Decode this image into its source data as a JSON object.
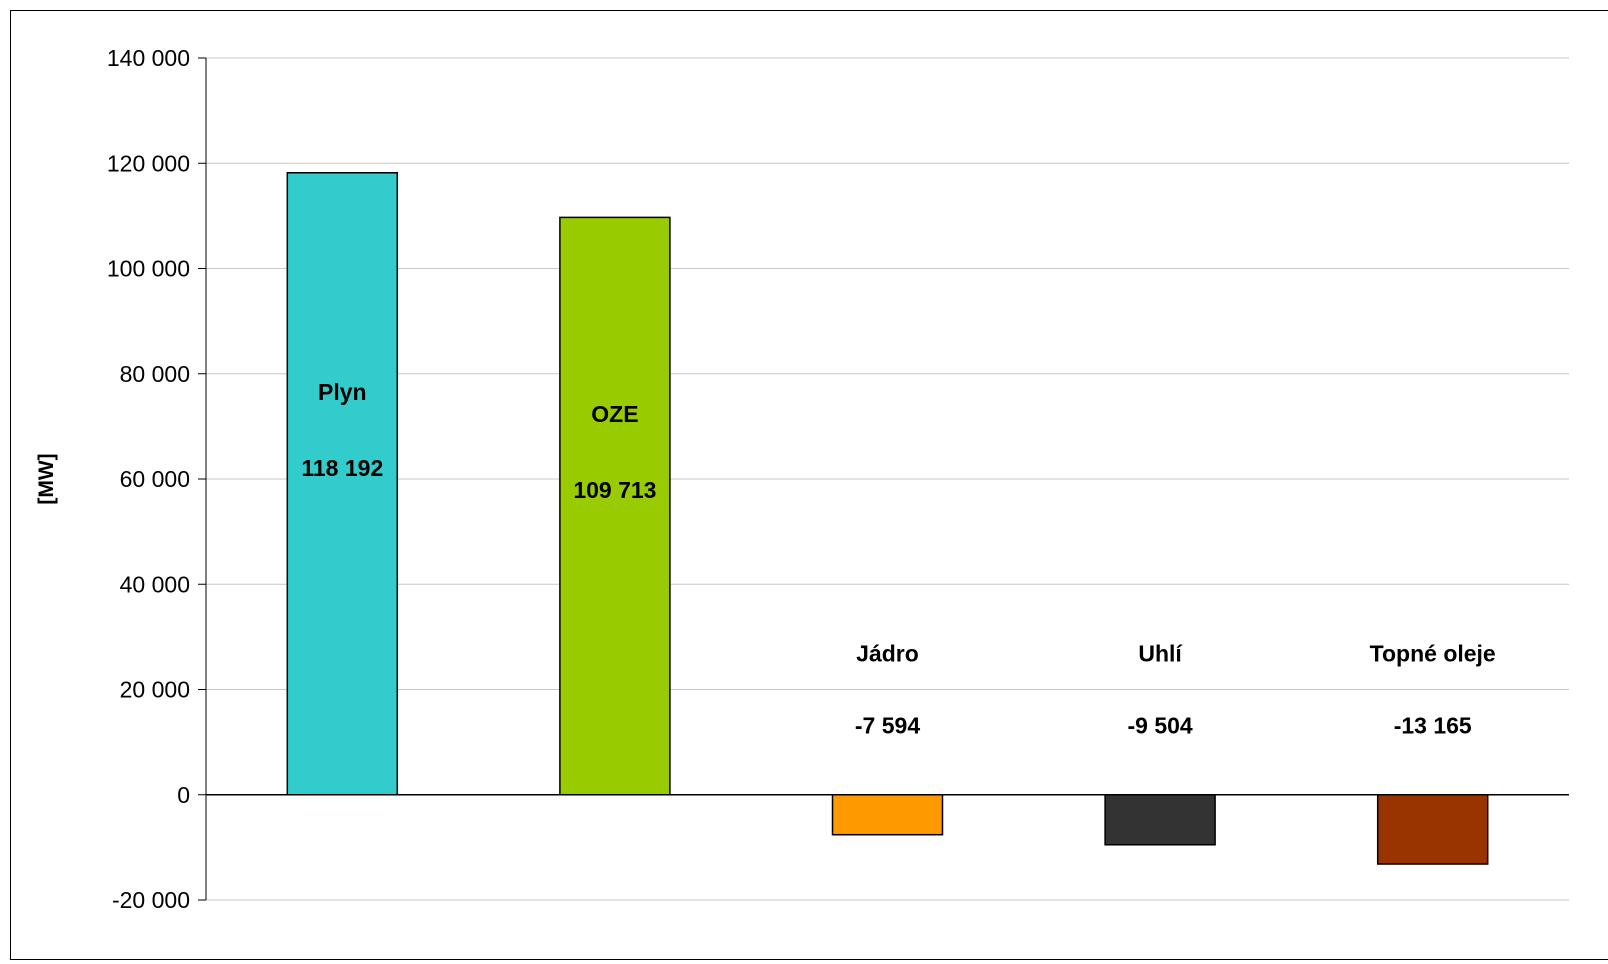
{
  "chart_data": {
    "type": "bar",
    "title": "",
    "xlabel": "",
    "ylabel": "[MW]",
    "ylim": [
      -20000,
      140000
    ],
    "yticks": [
      140000,
      120000,
      100000,
      80000,
      60000,
      40000,
      20000,
      0,
      -20000
    ],
    "ytick_labels": [
      "140 000",
      "120 000",
      "100 000",
      "80 000",
      "60 000",
      "40 000",
      "20 000",
      "0",
      "-20 000"
    ],
    "grid": true,
    "legend": "none",
    "categories": [
      "Plyn",
      "OZE",
      "Jádro",
      "Uhlí",
      "Topné oleje"
    ],
    "values": [
      118192,
      109713,
      -7594,
      -9504,
      -13165
    ],
    "value_labels": [
      "118 192",
      "109 713",
      "-7 594",
      "-9 504",
      "-13 165"
    ],
    "colors": [
      "#33CCCC",
      "#99CC00",
      "#FF9900",
      "#333333",
      "#993300"
    ]
  }
}
